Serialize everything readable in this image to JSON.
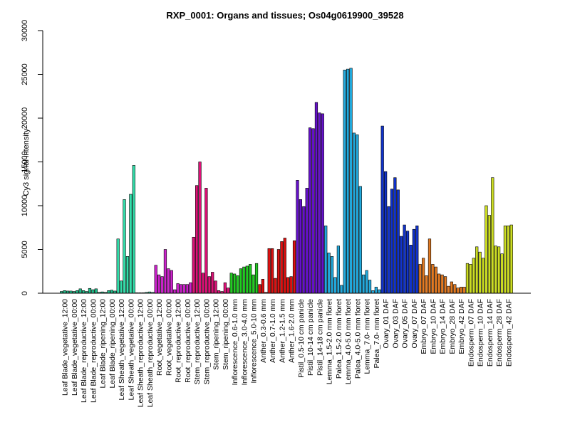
{
  "chart_data": {
    "type": "bar",
    "title": "RXP_0001: Organs and tissues; Os04g0619900_39528",
    "xlabel": "",
    "ylabel": "Cy3 signal intensity",
    "ylim": [
      0,
      30000
    ],
    "yticks": [
      0,
      5000,
      10000,
      15000,
      20000,
      25000,
      30000
    ],
    "grid": false,
    "legend": "none",
    "groups": [
      {
        "label": "Leaf Blade_vegetative_12:00",
        "color": "#1FBF8A",
        "values": [
          200,
          300,
          250
        ]
      },
      {
        "label": "Leaf Blade_vegetative_00:00",
        "color": "#1FBF8A",
        "values": [
          250,
          200,
          300
        ]
      },
      {
        "label": "Leaf Blade_reproductive_12:00",
        "color": "#1FBF8A",
        "values": [
          500,
          300,
          200
        ]
      },
      {
        "label": "Leaf Blade_reproductive_00:00",
        "color": "#1FBF8A",
        "values": [
          550,
          400,
          500
        ]
      },
      {
        "label": "Leaf Blade_ripening_12:00",
        "color": "#1FBF8A",
        "values": [
          100,
          150,
          100
        ]
      },
      {
        "label": "Leaf Blade_ripening_00:00",
        "color": "#1FBF8A",
        "values": [
          300,
          350,
          250
        ]
      },
      {
        "label": "Leaf Sheath_vegetative_12:00",
        "color": "#33DDAA",
        "values": [
          6200,
          1400,
          10700
        ]
      },
      {
        "label": "Leaf Sheath_vegetative_00:00",
        "color": "#33DDAA",
        "values": [
          4200,
          11300,
          14600
        ]
      },
      {
        "label": "Leaf Sheath_reproductive_12:00",
        "color": "#33DDAA",
        "values": [
          50,
          50,
          50
        ]
      },
      {
        "label": "Leaf Sheath_reproductive_00:00",
        "color": "#33DDAA",
        "values": [
          100,
          150,
          100
        ]
      },
      {
        "label": "Root_vegetative_12:00",
        "color": "#CC22CC",
        "values": [
          3200,
          2100,
          1900
        ]
      },
      {
        "label": "Root_vegetative_00:00",
        "color": "#CC22CC",
        "values": [
          5000,
          2800,
          2600
        ]
      },
      {
        "label": "Root_reproductive_12:00",
        "color": "#CC22CC",
        "values": [
          400,
          1100,
          1000
        ]
      },
      {
        "label": "Root_reproductive_00:00",
        "color": "#CC22CC",
        "values": [
          1000,
          1000,
          1200
        ]
      },
      {
        "label": "Stem_reproductive_12:00",
        "color": "#DD1177",
        "values": [
          6400,
          12300,
          15000
        ]
      },
      {
        "label": "Stem_reproductive_00:00",
        "color": "#DD1177",
        "values": [
          2300,
          12000,
          1900
        ]
      },
      {
        "label": "Stem_ripening_12:00",
        "color": "#DD1177",
        "values": [
          2400,
          1400,
          300
        ]
      },
      {
        "label": "Stem_ripening_00:00",
        "color": "#DD1177",
        "values": [
          200,
          1200,
          600
        ]
      },
      {
        "label": "Inflorescence_0.6-1.0 mm",
        "color": "#22CC22",
        "values": [
          2300,
          2200,
          2000
        ]
      },
      {
        "label": "Inflorescence_3.0-4.0 mm",
        "color": "#22CC22",
        "values": [
          2800,
          3000,
          3100
        ]
      },
      {
        "label": "Inflorescence_5.0-10 mm",
        "color": "#22CC22",
        "values": [
          3300,
          2100,
          3400
        ]
      },
      {
        "label": "Anther_0.3-0.6 mm",
        "color": "#DD1111",
        "values": [
          1000,
          1600,
          100
        ]
      },
      {
        "label": "Anther_0.7-1.0 mm",
        "color": "#DD1111",
        "values": [
          5100,
          5100,
          1700
        ]
      },
      {
        "label": "Anther_1.2-1.5 mm",
        "color": "#DD1111",
        "values": [
          5000,
          5900,
          6300
        ]
      },
      {
        "label": "Anther_1.6-2.0 mm",
        "color": "#DD1111",
        "values": [
          1800,
          1900,
          6000
        ]
      },
      {
        "label": "Pistil_0.5-10 cm panicle",
        "color": "#6611CC",
        "values": [
          12900,
          10700,
          9900
        ]
      },
      {
        "label": "Pistil_10-14 cm panicle",
        "color": "#6611CC",
        "values": [
          12000,
          18900,
          18800
        ]
      },
      {
        "label": "Pistil_14-18 cm panicle",
        "color": "#6611CC",
        "values": [
          21800,
          20600,
          20500
        ]
      },
      {
        "label": "Lemma_1.5-2.0 mm floret",
        "color": "#22AADD",
        "values": [
          7700,
          4600,
          4200
        ]
      },
      {
        "label": "Palea_1.5-2.0 mm floret",
        "color": "#22AADD",
        "values": [
          1800,
          5400,
          900
        ]
      },
      {
        "label": "Lemma_4.0-5.0 mm floret",
        "color": "#22AADD",
        "values": [
          25500,
          25600,
          25700
        ]
      },
      {
        "label": "Palea_4.0-5.0 mm floret",
        "color": "#22AADD",
        "values": [
          18300,
          18100,
          12200
        ]
      },
      {
        "label": "Lemma_7.0- mm floret",
        "color": "#22AADD",
        "values": [
          2100,
          2600,
          1500
        ]
      },
      {
        "label": "Palea_7.0- mm floret",
        "color": "#22AADD",
        "values": [
          300,
          700,
          400
        ]
      },
      {
        "label": "Ovary_01 DAF",
        "color": "#1133CC",
        "values": [
          19100,
          13900,
          9900
        ]
      },
      {
        "label": "Ovary_03 DAF",
        "color": "#1133CC",
        "values": [
          11900,
          13200,
          11800
        ]
      },
      {
        "label": "Ovary_05 DAF",
        "color": "#1133CC",
        "values": [
          6500,
          7800,
          7100
        ]
      },
      {
        "label": "Ovary_07 DAF",
        "color": "#1133CC",
        "values": [
          5500,
          7300,
          7700
        ]
      },
      {
        "label": "Embryo_07 DAF",
        "color": "#E37A22",
        "values": [
          3300,
          4000,
          2000
        ]
      },
      {
        "label": "Embryo_10 DAF",
        "color": "#E37A22",
        "values": [
          6200,
          3300,
          3000
        ]
      },
      {
        "label": "Embryo_14 DAF",
        "color": "#E37A22",
        "values": [
          2200,
          2100,
          1900
        ]
      },
      {
        "label": "Embryo_28 DAF",
        "color": "#E37A22",
        "values": [
          800,
          1300,
          1000
        ]
      },
      {
        "label": "Embryo_42 DAF",
        "color": "#E37A22",
        "values": [
          600,
          700,
          700
        ]
      },
      {
        "label": "Endosperm_07 DAF",
        "color": "#CCDD22",
        "values": [
          3400,
          3300,
          4000
        ]
      },
      {
        "label": "Endosperm_10 DAF",
        "color": "#CCDD22",
        "values": [
          5300,
          4700,
          4000
        ]
      },
      {
        "label": "Endosperm_14 DAF",
        "color": "#CCDD22",
        "values": [
          10000,
          8900,
          13200
        ]
      },
      {
        "label": "Endosperm_28 DAF",
        "color": "#CCDD22",
        "values": [
          5400,
          5300,
          4500
        ]
      },
      {
        "label": "Endosperm_42 DAF",
        "color": "#CCDD22",
        "values": [
          7700,
          7700,
          7800
        ]
      }
    ]
  }
}
